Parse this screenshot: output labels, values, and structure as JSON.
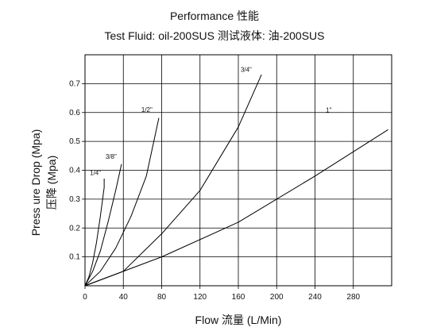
{
  "chart_data": {
    "type": "line",
    "title": "Performance 性能",
    "subtitle": "Test Fluid: oil-200SUS 测试液体:  油-200SUS",
    "xlabel": "Flow 流量 (L/Min)",
    "ylabel": "Press ure Drop (Mpa)",
    "ylabel_secondary": "压降  (Mpa)",
    "xlim": [
      0,
      320
    ],
    "ylim": [
      0,
      0.8
    ],
    "grid": true,
    "xticks": [
      0,
      40,
      80,
      120,
      160,
      200,
      240,
      280
    ],
    "xtick_labels": [
      "0",
      "40",
      "80",
      "120",
      "160",
      "200",
      "240",
      "280"
    ],
    "yticks": [
      0.1,
      0.2,
      0.3,
      0.4,
      0.5,
      0.6,
      0.7
    ],
    "ytick_labels": [
      "0.1",
      "0.2",
      "0.3",
      "0.4",
      "0.5",
      "0.6",
      "0.7"
    ],
    "series": [
      {
        "name": "1/4\"",
        "x": [
          0,
          4,
          8,
          12,
          16,
          20,
          20
        ],
        "y": [
          0,
          0.03,
          0.08,
          0.15,
          0.24,
          0.34,
          0.37
        ]
      },
      {
        "name": "3/8\"",
        "x": [
          0,
          8,
          16,
          24,
          32,
          38
        ],
        "y": [
          0,
          0.05,
          0.12,
          0.22,
          0.33,
          0.42
        ]
      },
      {
        "name": "1/2\"",
        "x": [
          0,
          16,
          32,
          48,
          64,
          77
        ],
        "y": [
          0,
          0.05,
          0.13,
          0.24,
          0.38,
          0.58
        ]
      },
      {
        "name": "3/4\"",
        "x": [
          0,
          40,
          80,
          120,
          160,
          184
        ],
        "y": [
          0,
          0.05,
          0.18,
          0.33,
          0.55,
          0.73
        ]
      },
      {
        "name": "1\"",
        "x": [
          0,
          80,
          160,
          240,
          316
        ],
        "y": [
          0,
          0.1,
          0.22,
          0.38,
          0.54
        ]
      }
    ]
  }
}
